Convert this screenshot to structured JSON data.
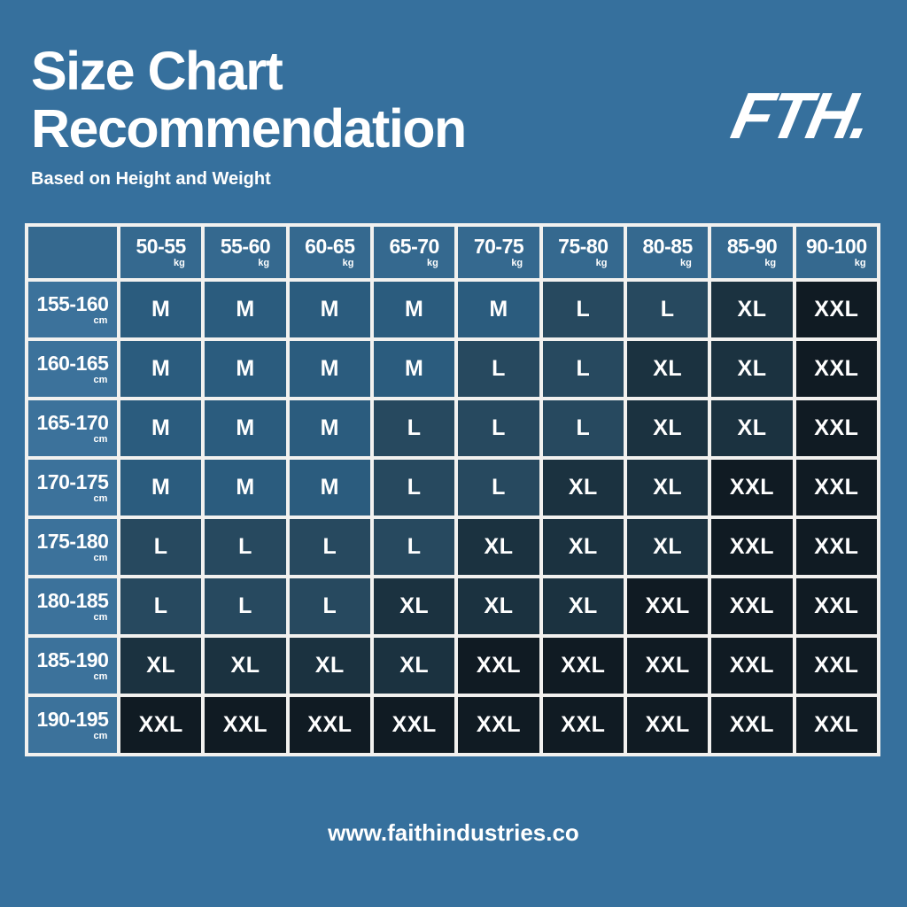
{
  "page": {
    "title_line1": "Size Chart",
    "title_line2": "Recommendation",
    "subtitle": "Based on Height and Weight",
    "logo": "FTH.",
    "footer_url": "www.faithindustries.co"
  },
  "colors": {
    "background": "#36709D",
    "grid_line": "#F2F1EF",
    "header_cell": "#35698F",
    "row_label_cell": "#3C729B",
    "text": "#FFFFFF"
  },
  "chart_data": {
    "type": "table",
    "title": "Size Chart Recommendation",
    "subtitle": "Based on Height and Weight",
    "column_unit": "kg",
    "row_unit": "cm",
    "columns": [
      "50-55",
      "55-60",
      "60-65",
      "65-70",
      "70-75",
      "75-80",
      "80-85",
      "85-90",
      "90-100"
    ],
    "rows": [
      "155-160",
      "160-165",
      "165-170",
      "170-175",
      "175-180",
      "180-185",
      "185-190",
      "190-195"
    ],
    "values": [
      [
        "M",
        "M",
        "M",
        "M",
        "M",
        "L",
        "L",
        "XL",
        "XXL"
      ],
      [
        "M",
        "M",
        "M",
        "M",
        "L",
        "L",
        "XL",
        "XL",
        "XXL"
      ],
      [
        "M",
        "M",
        "M",
        "L",
        "L",
        "L",
        "XL",
        "XL",
        "XXL"
      ],
      [
        "M",
        "M",
        "M",
        "L",
        "L",
        "XL",
        "XL",
        "XXL",
        "XXL"
      ],
      [
        "L",
        "L",
        "L",
        "L",
        "XL",
        "XL",
        "XL",
        "XXL",
        "XXL"
      ],
      [
        "L",
        "L",
        "L",
        "XL",
        "XL",
        "XL",
        "XXL",
        "XXL",
        "XXL"
      ],
      [
        "XL",
        "XL",
        "XL",
        "XL",
        "XXL",
        "XXL",
        "XXL",
        "XXL",
        "XXL"
      ],
      [
        "XXL",
        "XXL",
        "XXL",
        "XXL",
        "XXL",
        "XXL",
        "XXL",
        "XXL",
        "XXL"
      ]
    ],
    "cell_colors": {
      "M": "#2B5C7E",
      "L": "#27495F",
      "XL": "#1B3240",
      "XXL": "#101B23"
    }
  }
}
